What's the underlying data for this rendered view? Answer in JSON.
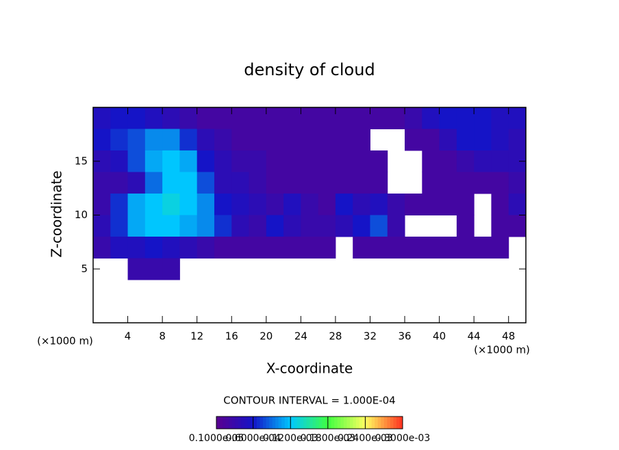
{
  "chart_data": {
    "type": "heatmap",
    "title": "density of cloud",
    "x_label": "X-coordinate",
    "y_label": "Z-coordinate",
    "x_unit": "(×1000 m)",
    "y_unit": "(×1000 m)",
    "contour_interval": "CONTOUR INTERVAL = 1.000E-04",
    "xlim": [
      0,
      50
    ],
    "ylim": [
      0,
      20
    ],
    "xticks": [
      4,
      8,
      12,
      16,
      20,
      24,
      28,
      32,
      36,
      40,
      44,
      48
    ],
    "yticks": [
      5,
      10,
      15
    ],
    "x": [
      1,
      3,
      5,
      7,
      9,
      11,
      13,
      15,
      17,
      19,
      21,
      23,
      25,
      27,
      29,
      31,
      33,
      35,
      37,
      39,
      41,
      43,
      45,
      47,
      49
    ],
    "y": [
      19,
      17,
      15,
      13,
      11,
      9,
      7,
      5,
      3,
      1
    ],
    "z": [
      [
        5e-05,
        6e-05,
        6e-05,
        5e-05,
        4e-05,
        3e-05,
        2e-05,
        2e-05,
        2e-05,
        2e-05,
        2e-05,
        2e-05,
        2e-05,
        2e-05,
        2e-05,
        2e-05,
        2e-05,
        2e-05,
        3e-05,
        5e-05,
        6e-05,
        6e-05,
        6e-05,
        5e-05,
        5e-05
      ],
      [
        6e-05,
        7e-05,
        8e-05,
        0.0001,
        0.0001,
        7e-05,
        4e-05,
        3e-05,
        2e-05,
        2e-05,
        2e-05,
        2e-05,
        2e-05,
        2e-05,
        2e-05,
        2e-05,
        null,
        null,
        2e-05,
        2e-05,
        4e-05,
        6e-05,
        6e-05,
        5e-05,
        4e-05
      ],
      [
        4e-05,
        5e-05,
        8e-05,
        0.00011,
        0.00012,
        0.00011,
        6e-05,
        4e-05,
        3e-05,
        3e-05,
        2e-05,
        2e-05,
        2e-05,
        2e-05,
        2e-05,
        2e-05,
        2e-05,
        null,
        null,
        2e-05,
        2e-05,
        3e-05,
        4e-05,
        4e-05,
        4e-05
      ],
      [
        3e-05,
        3e-05,
        4e-05,
        9e-05,
        0.00012,
        0.00012,
        8e-05,
        4e-05,
        4e-05,
        3e-05,
        2e-05,
        2e-05,
        2e-05,
        2e-05,
        2e-05,
        2e-05,
        2e-05,
        null,
        null,
        2e-05,
        2e-05,
        2e-05,
        2e-05,
        2e-05,
        3e-05
      ],
      [
        3e-05,
        7e-05,
        0.00011,
        0.00012,
        0.00013,
        0.00012,
        0.0001,
        6e-05,
        5e-05,
        4e-05,
        3e-05,
        5e-05,
        3e-05,
        2e-05,
        6e-05,
        4e-05,
        5e-05,
        3e-05,
        2e-05,
        2e-05,
        2e-05,
        2e-05,
        null,
        2e-05,
        4e-05
      ],
      [
        4e-05,
        7e-05,
        0.00011,
        0.00012,
        0.00012,
        0.00011,
        0.0001,
        7e-05,
        4e-05,
        3e-05,
        6e-05,
        4e-05,
        3e-05,
        3e-05,
        4e-05,
        6e-05,
        8e-05,
        3e-05,
        null,
        null,
        null,
        2e-05,
        null,
        2e-05,
        2e-05
      ],
      [
        3e-05,
        5e-05,
        5e-05,
        6e-05,
        5e-05,
        4e-05,
        3e-05,
        2e-05,
        2e-05,
        2e-05,
        2e-05,
        2e-05,
        2e-05,
        2e-05,
        null,
        2e-05,
        2e-05,
        2e-05,
        2e-05,
        2e-05,
        2e-05,
        2e-05,
        2e-05,
        2e-05,
        null
      ],
      [
        null,
        null,
        3e-05,
        3e-05,
        3e-05,
        null,
        null,
        null,
        null,
        null,
        null,
        null,
        null,
        null,
        null,
        null,
        null,
        null,
        null,
        null,
        null,
        null,
        null,
        null,
        null
      ],
      [
        null,
        null,
        null,
        null,
        null,
        null,
        null,
        null,
        null,
        null,
        null,
        null,
        null,
        null,
        null,
        null,
        null,
        null,
        null,
        null,
        null,
        null,
        null,
        null,
        null
      ],
      [
        null,
        null,
        null,
        null,
        null,
        null,
        null,
        null,
        null,
        null,
        null,
        null,
        null,
        null,
        null,
        null,
        null,
        null,
        null,
        null,
        null,
        null,
        null,
        null,
        null
      ]
    ],
    "zlim": [
      1e-06,
      0.0003
    ],
    "colormap": [
      "#5a0090",
      "#1414c8",
      "#00c8ff",
      "#40ff40",
      "#ffff60",
      "#ff3020"
    ],
    "zticks": [
      {
        "value": 1e-06,
        "label": "0.1000e-05"
      },
      {
        "value": 6e-05,
        "label": "0.6000e-04"
      },
      {
        "value": 0.00012,
        "label": "0.1200e-03"
      },
      {
        "value": 0.00018,
        "label": "0.1800e-03"
      },
      {
        "value": 0.00024,
        "label": "0.2400e-03"
      },
      {
        "value": 0.0003,
        "label": "0.3000e-03"
      }
    ]
  }
}
